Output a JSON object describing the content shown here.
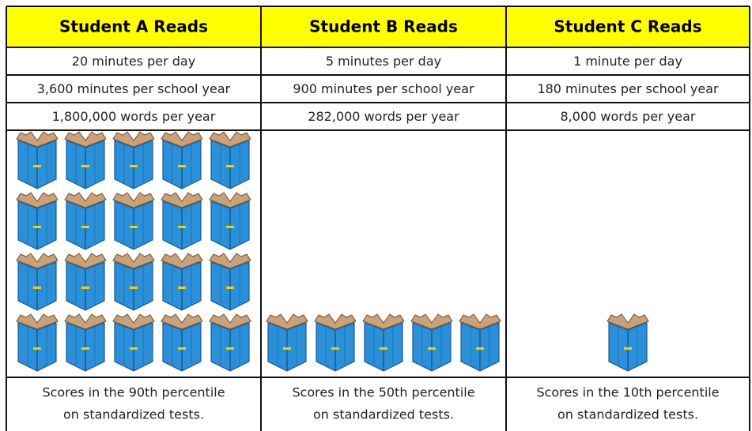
{
  "table": {
    "columns": [
      {
        "header": "Student A Reads",
        "rows": [
          "20 minutes per day",
          "3,600 minutes per school year",
          "1,800,000 words per year"
        ],
        "books": 20,
        "footer": [
          "Scores in the 90th percentile",
          "on standardized tests."
        ]
      },
      {
        "header": "Student B Reads",
        "rows": [
          "5 minutes per day",
          "900 minutes per school year",
          "282,000 words per year"
        ],
        "books": 5,
        "footer": [
          "Scores in the 50th percentile",
          "on standardized tests."
        ]
      },
      {
        "header": "Student C Reads",
        "rows": [
          "1 minute per day",
          "180 minutes per school year",
          "8,000 words per year"
        ],
        "books": 1,
        "footer": [
          "Scores in the 10th percentile",
          "on standardized tests."
        ]
      }
    ]
  }
}
